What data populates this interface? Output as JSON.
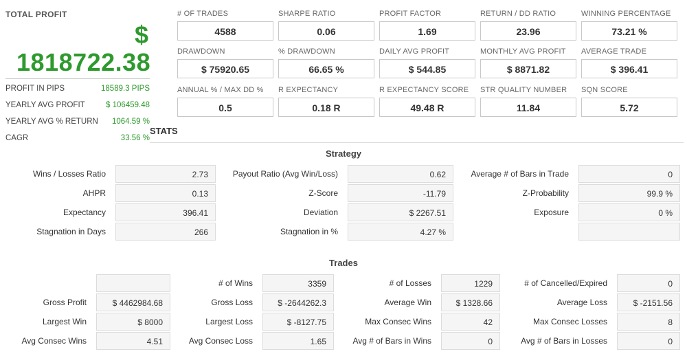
{
  "total_profit": {
    "title": "TOTAL PROFIT",
    "currency_symbol": "$",
    "amount": "1818722.38",
    "rows": [
      {
        "label": "PROFIT IN PIPS",
        "value": "18589.3 PIPS"
      },
      {
        "label": "YEARLY AVG PROFIT",
        "value": "$ 106459.48"
      },
      {
        "label": "YEARLY AVG % RETURN",
        "value": "1064.59 %"
      },
      {
        "label": "CAGR",
        "value": "33.56 %"
      }
    ]
  },
  "metrics": [
    [
      {
        "label": "# OF TRADES",
        "value": "4588"
      },
      {
        "label": "SHARPE RATIO",
        "value": "0.06"
      },
      {
        "label": "PROFIT FACTOR",
        "value": "1.69"
      },
      {
        "label": "RETURN / DD RATIO",
        "value": "23.96"
      },
      {
        "label": "WINNING PERCENTAGE",
        "value": "73.21 %"
      }
    ],
    [
      {
        "label": "DRAWDOWN",
        "value": "$ 75920.65"
      },
      {
        "label": "% DRAWDOWN",
        "value": "66.65 %"
      },
      {
        "label": "DAILY AVG PROFIT",
        "value": "$ 544.85"
      },
      {
        "label": "MONTHLY AVG PROFIT",
        "value": "$ 8871.82"
      },
      {
        "label": "AVERAGE TRADE",
        "value": "$ 396.41"
      }
    ],
    [
      {
        "label": "ANNUAL % / MAX DD %",
        "value": "0.5"
      },
      {
        "label": "R EXPECTANCY",
        "value": "0.18 R"
      },
      {
        "label": "R EXPECTANCY SCORE",
        "value": "49.48 R"
      },
      {
        "label": "STR QUALITY NUMBER",
        "value": "11.84"
      },
      {
        "label": "SQN SCORE",
        "value": "5.72"
      }
    ]
  ],
  "stats_title": "STATS",
  "strategy": {
    "title": "Strategy",
    "rows": [
      [
        {
          "label": "Wins / Losses Ratio",
          "value": "2.73"
        },
        {
          "label": "Payout Ratio (Avg Win/Loss)",
          "value": "0.62"
        },
        {
          "label": "Average # of Bars in Trade",
          "value": "0"
        }
      ],
      [
        {
          "label": "AHPR",
          "value": "0.13"
        },
        {
          "label": "Z-Score",
          "value": "-11.79"
        },
        {
          "label": "Z-Probability",
          "value": "99.9 %"
        }
      ],
      [
        {
          "label": "Expectancy",
          "value": "396.41"
        },
        {
          "label": "Deviation",
          "value": "$ 2267.51"
        },
        {
          "label": "Exposure",
          "value": "0 %"
        }
      ],
      [
        {
          "label": "Stagnation in Days",
          "value": "266"
        },
        {
          "label": "Stagnation in %",
          "value": "4.27 %"
        },
        {
          "label": "",
          "value": ""
        }
      ]
    ]
  },
  "trades": {
    "title": "Trades",
    "rows": [
      [
        {
          "label": "",
          "value": ""
        },
        {
          "label": "# of Wins",
          "value": "3359"
        },
        {
          "label": "# of Losses",
          "value": "1229"
        },
        {
          "label": "# of Cancelled/Expired",
          "value": "0"
        }
      ],
      [
        {
          "label": "Gross Profit",
          "value": "$ 4462984.68"
        },
        {
          "label": "Gross Loss",
          "value": "$ -2644262.3"
        },
        {
          "label": "Average Win",
          "value": "$ 1328.66"
        },
        {
          "label": "Average Loss",
          "value": "$ -2151.56"
        }
      ],
      [
        {
          "label": "Largest Win",
          "value": "$ 8000"
        },
        {
          "label": "Largest Loss",
          "value": "$ -8127.75"
        },
        {
          "label": "Max Consec Wins",
          "value": "42"
        },
        {
          "label": "Max Consec Losses",
          "value": "8"
        }
      ],
      [
        {
          "label": "Avg Consec Wins",
          "value": "4.51"
        },
        {
          "label": "Avg Consec Loss",
          "value": "1.65"
        },
        {
          "label": "Avg # of Bars in Wins",
          "value": "0"
        },
        {
          "label": "Avg # of Bars in Losses",
          "value": "0"
        }
      ]
    ]
  }
}
